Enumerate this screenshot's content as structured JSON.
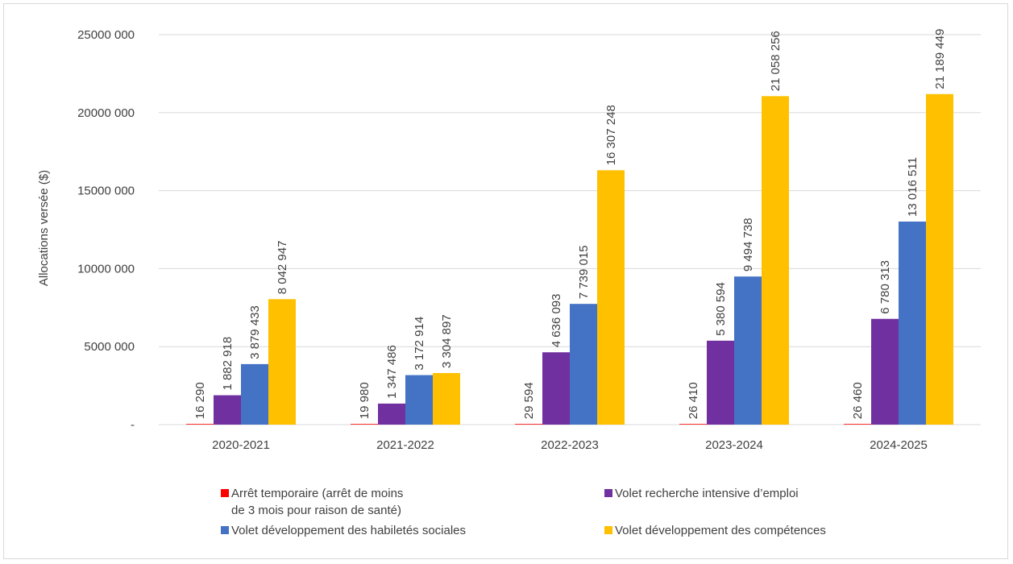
{
  "chart_data": {
    "type": "bar",
    "title": "",
    "xlabel": "",
    "ylabel": "Allocations versée ($)",
    "ylim": [
      0,
      25000000
    ],
    "yticks": [
      {
        "value": 0,
        "label": "-"
      },
      {
        "value": 5000000,
        "label": "5000 000"
      },
      {
        "value": 10000000,
        "label": "10000 000"
      },
      {
        "value": 15000000,
        "label": "15000 000"
      },
      {
        "value": 20000000,
        "label": "20000 000"
      },
      {
        "value": 25000000,
        "label": "25000 000"
      }
    ],
    "grid": true,
    "legend_position": "bottom",
    "categories": [
      "2020-2021",
      "2021-2022",
      "2022-2023",
      "2023-2024",
      "2024-2025"
    ],
    "series": [
      {
        "name": "Arrêt temporaire (arrêt de moins de 3 mois pour raison de santé)",
        "legend_lines": [
          "Arrêt temporaire (arrêt de moins",
          "de 3 mois pour raison de santé)"
        ],
        "color": "#ff0000",
        "values": [
          16290,
          19980,
          29594,
          26410,
          26460
        ],
        "labels": [
          "16 290",
          "19 980",
          "29 594",
          "26 410",
          "26 460"
        ]
      },
      {
        "name": "Volet recherche intensive d’emploi",
        "legend_lines": [
          "Volet recherche intensive d’emploi"
        ],
        "color": "#7030a0",
        "values": [
          1882918,
          1347486,
          4636093,
          5380594,
          6780313
        ],
        "labels": [
          "1 882 918",
          "1 347 486",
          "4 636 093",
          "5 380 594",
          "6 780 313"
        ]
      },
      {
        "name": "Volet développement des habiletés sociales",
        "legend_lines": [
          "Volet développement des habiletés sociales"
        ],
        "color": "#4472c4",
        "values": [
          3879433,
          3172914,
          7739015,
          9494738,
          13016511
        ],
        "labels": [
          "3 879 433",
          "3 172 914",
          "7 739 015",
          "9 494 738",
          "13 016 511"
        ]
      },
      {
        "name": "Volet développement des compétences",
        "legend_lines": [
          "Volet développement des compétences"
        ],
        "color": "#ffc000",
        "values": [
          8042947,
          3304897,
          16307248,
          21058256,
          21189449
        ],
        "labels": [
          "8 042 947",
          "3 304 897",
          "16 307 248",
          "21 058 256",
          "21 189 449"
        ]
      }
    ]
  }
}
